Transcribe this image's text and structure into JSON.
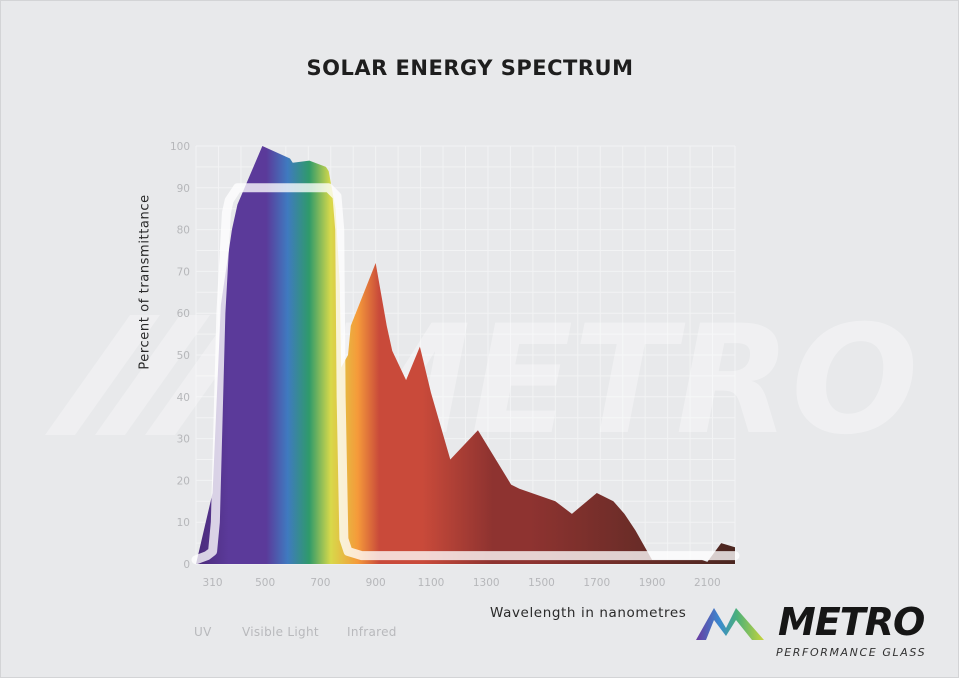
{
  "watermark": "METRO",
  "logo": {
    "word": "METRO",
    "sub": "PERFORMANCE GLASS"
  },
  "bands": [
    "UV",
    "Visible Light",
    "Infrared"
  ],
  "chart_data": {
    "type": "area",
    "title": "SOLAR ENERGY SPECTRUM",
    "xlabel": "Wavelength in nanometres",
    "ylabel": "Percent of transmittance",
    "x_ticks": [
      310,
      500,
      700,
      900,
      1100,
      1300,
      1500,
      1700,
      1900,
      2100
    ],
    "y_ticks": [
      0,
      10,
      20,
      30,
      40,
      50,
      60,
      70,
      80,
      90,
      100
    ],
    "xlim": [
      250,
      2200
    ],
    "ylim": [
      0,
      100
    ],
    "grid": true,
    "series": [
      {
        "kind": "solar-spectrum",
        "colors": [
          "#4a2a7a",
          "#5b3a9a",
          "#3f7ac0",
          "#2f9a6a",
          "#d8d94a",
          "#f59a3a",
          "#c94a3a",
          "#8e3330",
          "#4a2620"
        ],
        "x": [
          250,
          310,
          340,
          380,
          400,
          490,
          590,
          600,
          660,
          720,
          730,
          755,
          770,
          775,
          800,
          810,
          900,
          940,
          960,
          1010,
          1060,
          1100,
          1170,
          1270,
          1390,
          1420,
          1550,
          1610,
          1700,
          1760,
          1800,
          1840,
          1900,
          2080,
          2100,
          2150,
          2200
        ],
        "y": [
          0,
          17,
          62,
          80,
          86,
          100,
          97,
          96,
          96.5,
          95,
          94,
          85,
          67,
          47,
          50,
          57,
          72,
          57,
          51,
          44,
          52,
          41,
          25,
          32,
          19,
          18,
          15,
          12,
          17,
          15,
          12,
          8,
          1,
          1,
          0.5,
          5,
          4
        ]
      },
      {
        "kind": "glass-transmittance",
        "color": "#ffffff",
        "x": [
          250,
          290,
          310,
          320,
          340,
          360,
          370,
          400,
          470,
          600,
          730,
          760,
          770,
          775,
          785,
          800,
          850,
          900,
          1300,
          1700,
          1790,
          1850,
          1900,
          2050,
          2100,
          2200
        ],
        "y": [
          1,
          2,
          3,
          10,
          60,
          84,
          87,
          90,
          90,
          90,
          90,
          88,
          80,
          40,
          6,
          3,
          2,
          2,
          2,
          2,
          2,
          2,
          2,
          2,
          2,
          2
        ]
      }
    ]
  }
}
